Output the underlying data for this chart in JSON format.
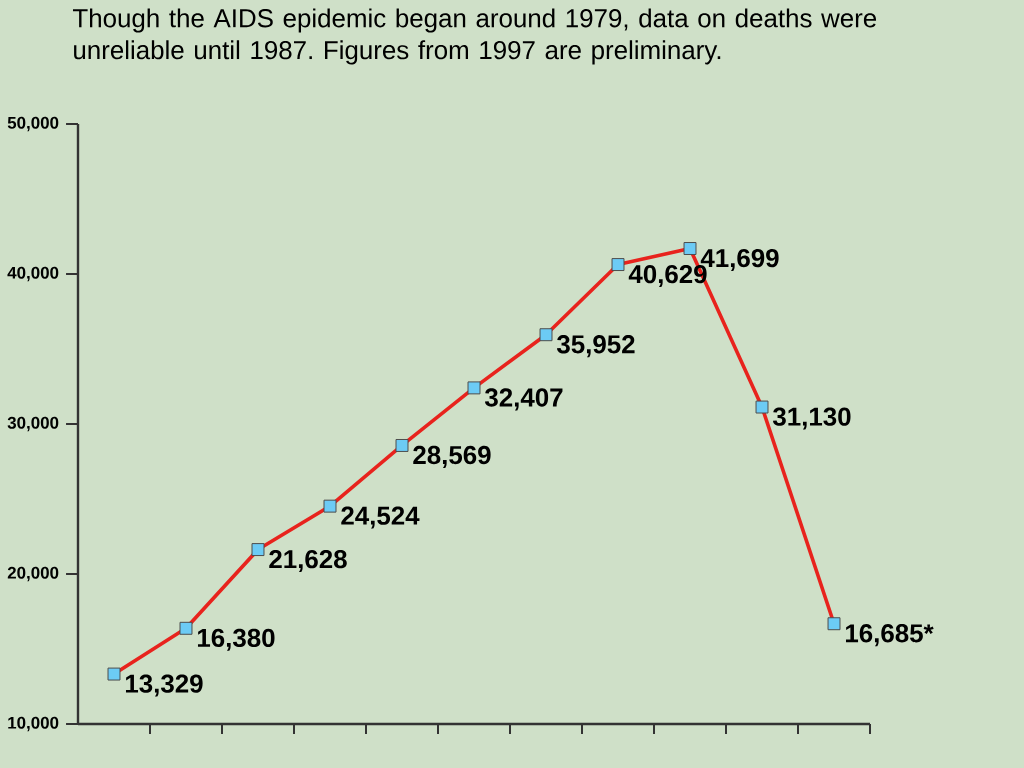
{
  "chart_data": {
    "type": "line",
    "title": "Though the AIDS epidemic began around 1979, data on deaths were unreliable until 1987. Figures from 1997 are preliminary.",
    "categories": [
      null,
      null,
      null,
      null,
      null,
      null,
      null,
      null,
      null,
      null,
      null
    ],
    "series": [
      {
        "color": "#e8231d",
        "values": [
          13329,
          16380,
          21628,
          24524,
          28569,
          32407,
          35952,
          40629,
          41699,
          31130,
          16685
        ],
        "value_labels": [
          "13,329",
          "16,380",
          "21,628",
          "24,524",
          "28,569",
          "32,407",
          "35,952",
          "40,629",
          "41,699",
          "31,130",
          "16,685*"
        ]
      }
    ],
    "ylim": [
      10000,
      50000
    ],
    "yticks": [
      {
        "value": 10000,
        "label": "10,000"
      },
      {
        "value": 20000,
        "label": "20,000"
      },
      {
        "value": 30000,
        "label": "30,000"
      },
      {
        "value": 40000,
        "label": "40,000"
      },
      {
        "value": 50000,
        "label": "50,000"
      }
    ],
    "marker": "square",
    "grid": false
  }
}
